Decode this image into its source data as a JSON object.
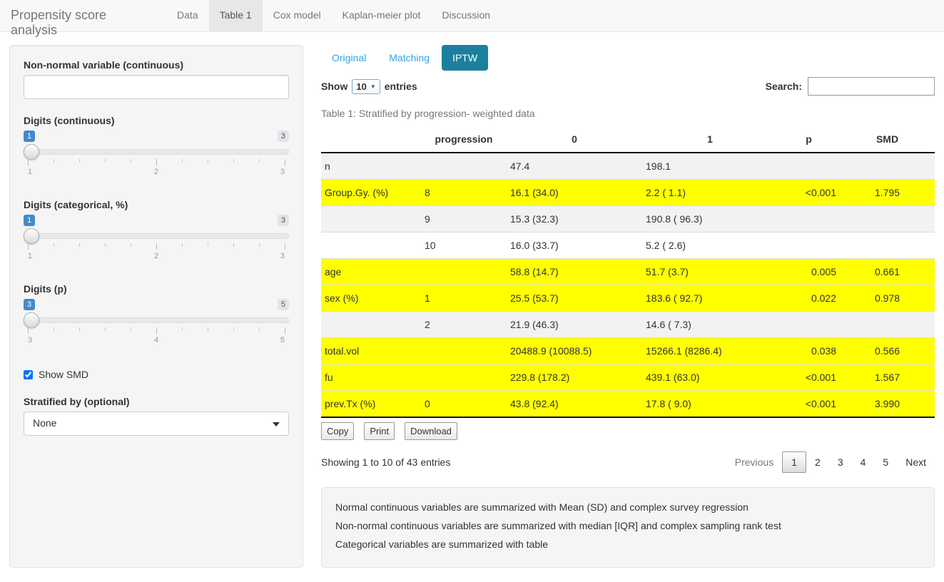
{
  "colors": {
    "active_pill_bg": "#1b809e",
    "link_blue": "#2fa4e7",
    "highlight_yellow": "#ffff00",
    "slider_badge_blue": "#428bca",
    "navbar_bg": "#f8f8f8",
    "panel_bg": "#f5f5f5"
  },
  "navbar": {
    "brand": "Propensity score analysis",
    "tabs": [
      {
        "label": "Data",
        "active": false
      },
      {
        "label": "Table 1",
        "active": true
      },
      {
        "label": "Cox model",
        "active": false
      },
      {
        "label": "Kaplan-meier plot",
        "active": false
      },
      {
        "label": "Discussion",
        "active": false
      }
    ]
  },
  "sidebar": {
    "nonnormal": {
      "label": "Non-normal variable (continuous)",
      "value": ""
    },
    "sliders": [
      {
        "label": "Digits (continuous)",
        "value": "1",
        "max_badge": "3",
        "ticks": [
          "1",
          "2",
          "3"
        ]
      },
      {
        "label": "Digits (categorical, %)",
        "value": "1",
        "max_badge": "3",
        "ticks": [
          "1",
          "2",
          "3"
        ]
      },
      {
        "label": "Digits (p)",
        "value": "3",
        "max_badge": "5",
        "ticks": [
          "3",
          "4",
          "5"
        ]
      }
    ],
    "show_smd": {
      "label": "Show SMD",
      "checked": true
    },
    "stratified": {
      "label": "Stratified by (optional)",
      "value": "None"
    }
  },
  "main": {
    "pills": [
      {
        "label": "Original",
        "active": false
      },
      {
        "label": "Matching",
        "active": false
      },
      {
        "label": "IPTW",
        "active": true
      }
    ],
    "length_control": {
      "prefix": "Show",
      "value": "10",
      "suffix": "entries"
    },
    "search": {
      "label": "Search:",
      "value": ""
    },
    "table": {
      "caption": "Table 1: Stratified by progression- weighted data",
      "headers": [
        "",
        "progression",
        "0",
        "1",
        "p",
        "SMD"
      ],
      "rows": [
        {
          "cells": [
            "n",
            "",
            "47.4",
            "198.1",
            "",
            ""
          ],
          "highlight": false
        },
        {
          "cells": [
            "Group.Gy. (%)",
            "8",
            "16.1 (34.0)",
            "2.2 ( 1.1)",
            "<0.001",
            "1.795"
          ],
          "highlight": true
        },
        {
          "cells": [
            "",
            "9",
            "15.3 (32.3)",
            "190.8 ( 96.3)",
            "",
            ""
          ],
          "highlight": false
        },
        {
          "cells": [
            "",
            "10",
            "16.0 (33.7)",
            "5.2 ( 2.6)",
            "",
            ""
          ],
          "highlight": false
        },
        {
          "cells": [
            "age",
            "",
            "58.8 (14.7)",
            "51.7 (3.7)",
            "0.005",
            "0.661"
          ],
          "highlight": true
        },
        {
          "cells": [
            "sex (%)",
            "1",
            "25.5 (53.7)",
            "183.6 ( 92.7)",
            "0.022",
            "0.978"
          ],
          "highlight": true
        },
        {
          "cells": [
            "",
            "2",
            "21.9 (46.3)",
            "14.6 ( 7.3)",
            "",
            ""
          ],
          "highlight": false
        },
        {
          "cells": [
            "total.vol",
            "",
            "20488.9 (10088.5)",
            "15266.1 (8286.4)",
            "0.038",
            "0.566"
          ],
          "highlight": true
        },
        {
          "cells": [
            "fu",
            "",
            "229.8 (178.2)",
            "439.1 (63.0)",
            "<0.001",
            "1.567"
          ],
          "highlight": true
        },
        {
          "cells": [
            "prev.Tx (%)",
            "0",
            "43.8 (92.4)",
            "17.8 ( 9.0)",
            "<0.001",
            "3.990"
          ],
          "highlight": true
        }
      ]
    },
    "buttons": [
      "Copy",
      "Print",
      "Download"
    ],
    "info": "Showing 1 to 10 of 43 entries",
    "pagination": {
      "previous": "Previous",
      "pages": [
        "1",
        "2",
        "3",
        "4",
        "5"
      ],
      "next": "Next",
      "current": "1"
    },
    "notes": [
      "Normal continuous variables are summarized with Mean (SD) and complex survey regression",
      "Non-normal continuous variables are summarized with median [IQR] and complex sampling rank test",
      "Categorical variables are summarized with table"
    ]
  }
}
